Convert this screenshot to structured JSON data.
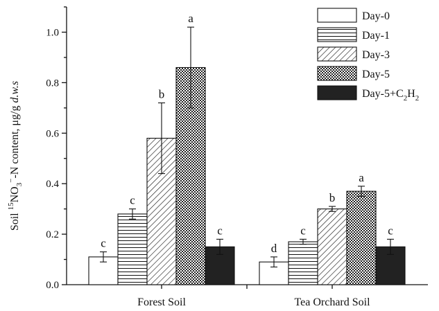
{
  "chart_data": {
    "type": "bar",
    "categories": [
      "Forest Soil",
      "Tea Orchard Soil"
    ],
    "ylabel": {
      "pre": "Soil ",
      "sup_mass": "15",
      "no": "NO",
      "sub_3": "3",
      "sup_minus": "−",
      "mid": "-N content, μg/g ",
      "italic_tail": "d.w.s"
    },
    "ylim": [
      0.0,
      1.1
    ],
    "yticks": [
      "0.0",
      "0.2",
      "0.4",
      "0.6",
      "0.8",
      "1.0"
    ],
    "series": [
      {
        "name": "Day-0",
        "pattern": "white",
        "values": [
          0.11,
          0.09
        ],
        "errors": [
          0.02,
          0.02
        ],
        "letters": [
          "c",
          "d"
        ]
      },
      {
        "name": "Day-1",
        "pattern": "hlines",
        "values": [
          0.28,
          0.17
        ],
        "errors": [
          0.02,
          0.01
        ],
        "letters": [
          "c",
          "c"
        ]
      },
      {
        "name": "Day-3",
        "pattern": "diag",
        "values": [
          0.58,
          0.3
        ],
        "errors": [
          0.14,
          0.01
        ],
        "letters": [
          "b",
          "b"
        ]
      },
      {
        "name": "Day-5",
        "pattern": "checker",
        "values": [
          0.86,
          0.37
        ],
        "errors": [
          0.16,
          0.02
        ],
        "letters": [
          "a",
          "a"
        ]
      },
      {
        "name": "Day-5+C2H2",
        "name_parts": [
          "Day-5+C",
          "2",
          "H",
          "2"
        ],
        "pattern": "black",
        "values": [
          0.15,
          0.15
        ],
        "errors": [
          0.03,
          0.03
        ],
        "letters": [
          "c",
          "c"
        ]
      }
    ],
    "legend_position": "top-right",
    "grid": false
  }
}
